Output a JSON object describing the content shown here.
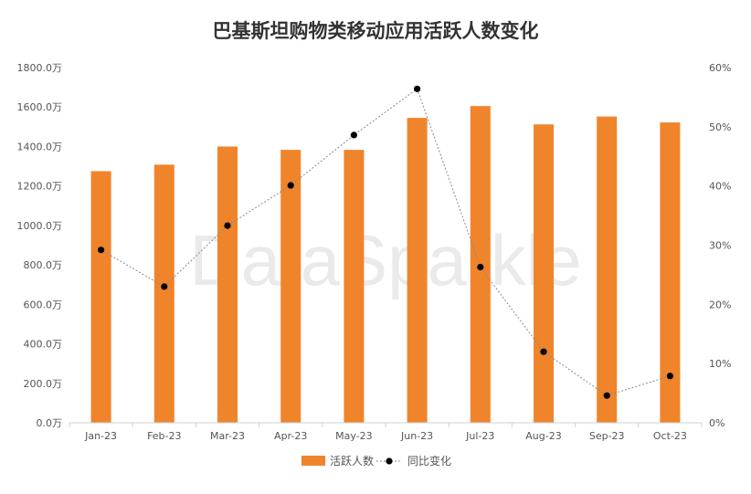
{
  "chart_data": {
    "type": "bar",
    "title": "巴基斯坦购物类移动应用活跃人数变化",
    "categories": [
      "Jan-23",
      "Feb-23",
      "Mar-23",
      "Apr-23",
      "May-23",
      "Jun-23",
      "Jul-23",
      "Aug-23",
      "Sep-23",
      "Oct-23"
    ],
    "series": [
      {
        "name": "活跃人数",
        "type": "bar",
        "axis": "left",
        "color": "#F0842B",
        "values": [
          1275,
          1308,
          1400,
          1383,
          1383,
          1545,
          1605,
          1512,
          1552,
          1522
        ]
      },
      {
        "name": "同比变化",
        "type": "line",
        "axis": "right",
        "color": "#000000",
        "values": [
          29.2,
          23.0,
          33.3,
          40.1,
          48.6,
          56.4,
          26.3,
          12.0,
          4.6,
          7.9
        ]
      }
    ],
    "y_left": {
      "min": 0,
      "max": 1800,
      "step": 200,
      "tick_labels": [
        "0.0万",
        "200.0万",
        "400.0万",
        "600.0万",
        "800.0万",
        "1000.0万",
        "1200.0万",
        "1400.0万",
        "1600.0万",
        "1800.0万"
      ]
    },
    "y_right": {
      "min": 0,
      "max": 60,
      "step": 10,
      "tick_labels": [
        "0%",
        "10%",
        "20%",
        "30%",
        "40%",
        "50%",
        "60%"
      ]
    },
    "grid": false,
    "legend": {
      "position": "bottom",
      "entries": [
        "活跃人数",
        "同比变化"
      ]
    },
    "watermark": "DataSparkle"
  }
}
